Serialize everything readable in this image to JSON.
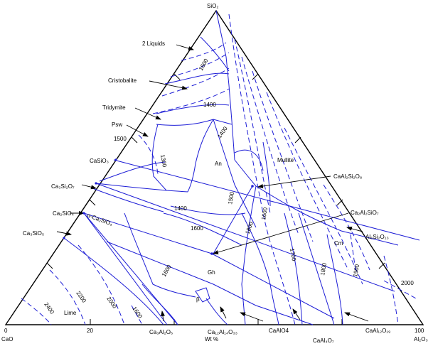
{
  "vertices": {
    "top": "SiO₂",
    "left": "CaO",
    "right": "Al₂O₃"
  },
  "axis": {
    "zero": "0",
    "twenty": "20",
    "hundred": "100",
    "unit": "Wt %"
  },
  "callouts": {
    "two_liquids": "2 Liquids",
    "cristobalite": "Cristobalite",
    "tridymite": "Tridymite",
    "psw": "Psw",
    "casio3": "CaSiO₃",
    "ca3si2o7": "Ca₃Si₂O₇",
    "ca2sio4": "Ca₂SiO₄",
    "alpha_ca2sio4": "α-Ca₂SiO₄",
    "ca3sio5": "Ca₃SiO₅",
    "lime": "Lime",
    "caal2si2o8": "CaAl₂Si₂O₈",
    "ca2al2sio7": "Ca₂Al₂SiO₇",
    "al6si2o13": "Al₆Si₂O₁₃",
    "ca3al2o6": "Ca₃Al₂O₆",
    "ca12al14o33": "Ca₁₂Al₁₄O₃₃",
    "caal2o4": "CaAlO4",
    "caal4o7": "CaAl₄O₇",
    "caal12o19": "CaAl₁₂O₁₉"
  },
  "fields": {
    "an": "An",
    "mullite": "Mullite",
    "cm": "Cm",
    "gh": "Gh",
    "beta": "β"
  },
  "isotherms": {
    "t1600a": "1600",
    "t1400a": "1400",
    "t1400b": "1400",
    "t1500": "1500",
    "t1300": "1300",
    "t1500b": "1500",
    "t1400c": "1400",
    "t1600b": "1600",
    "t1600c": "1600",
    "t1600d": "1600",
    "t1700": "1700",
    "t1800": "1800",
    "t1900": "1900",
    "t2000": "2000",
    "t2000b": "2000",
    "t2200": "2200",
    "t2400": "2400",
    "t1800b": "1800",
    "t1600e": "1600"
  }
}
